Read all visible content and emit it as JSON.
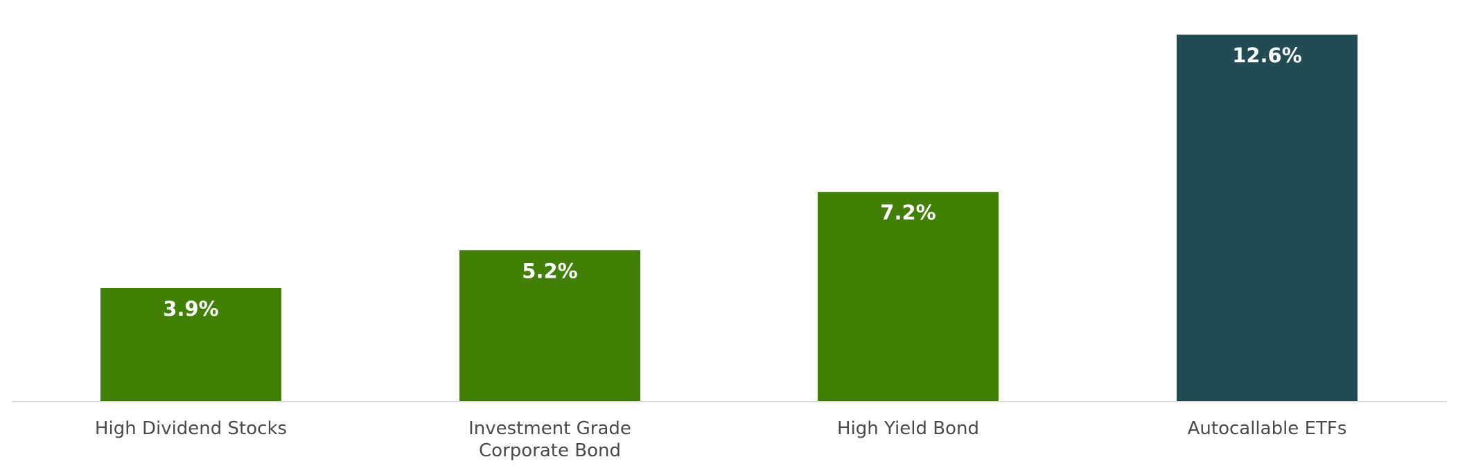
{
  "chart_data": {
    "type": "bar",
    "categories": [
      [
        "High Dividend Stocks"
      ],
      [
        "Investment Grade",
        "Corporate Bond"
      ],
      [
        "High Yield Bond"
      ],
      [
        "Autocallable ETFs"
      ]
    ],
    "values": [
      3.9,
      5.2,
      7.2,
      12.6
    ],
    "value_labels": [
      "3.9%",
      "5.2%",
      "7.2%",
      "12.6%"
    ],
    "bar_colors": [
      "#417F07",
      "#417F07",
      "#417F07",
      "#234B56"
    ],
    "title": "",
    "xlabel": "",
    "ylabel": "",
    "ylim": [
      0,
      12.6
    ],
    "grid": false,
    "legend": "none",
    "axis_line_color": "#D9D9D9"
  }
}
